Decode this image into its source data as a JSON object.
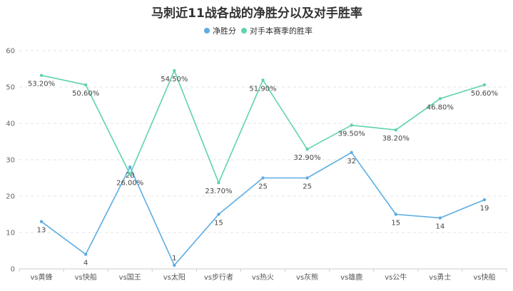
{
  "chart_data": {
    "type": "line",
    "title": "马刺近11战各战的净胜分以及对手胜率",
    "categories": [
      "vs黄蜂",
      "vs快船",
      "vs国王",
      "vs太阳",
      "vs步行者",
      "vs热火",
      "vs灰熊",
      "vs雄鹿",
      "vs公牛",
      "vs勇士",
      "vs快船"
    ],
    "ylim": [
      0,
      60
    ],
    "yticks": [
      "0",
      "10",
      "20",
      "30",
      "40",
      "50",
      "60"
    ],
    "grid": true,
    "legend_position": "top-center",
    "series": [
      {
        "name": "净胜分",
        "color": "#5dade2",
        "values": [
          13,
          4,
          28,
          1,
          15,
          25,
          25,
          32,
          15,
          14,
          19
        ],
        "labels": [
          "13",
          "4",
          "28",
          "1",
          "15",
          "25",
          "25",
          "32",
          "15",
          "14",
          "19"
        ]
      },
      {
        "name": "对手本赛季的胜率",
        "color": "#5fd4a8",
        "values": [
          53.2,
          50.6,
          26.0,
          54.5,
          23.7,
          51.9,
          32.9,
          39.5,
          38.2,
          46.8,
          50.6
        ],
        "labels": [
          "53.20%",
          "50.60%",
          "26.00%",
          "54.50%",
          "23.70%",
          "51.90%",
          "32.90%",
          "39.50%",
          "38.20%",
          "46.80%",
          "50.60%"
        ]
      }
    ]
  }
}
